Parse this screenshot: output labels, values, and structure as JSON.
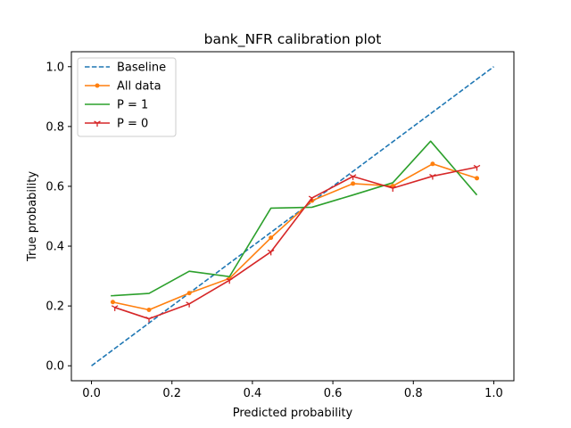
{
  "chart_data": {
    "type": "line",
    "title": "bank_NFR calibration plot",
    "xlabel": "Predicted probability",
    "ylabel": "True probability",
    "xlim": [
      -0.05,
      1.05
    ],
    "ylim": [
      -0.05,
      1.05
    ],
    "xticks": [
      0.0,
      0.2,
      0.4,
      0.6,
      0.8,
      1.0
    ],
    "yticks": [
      0.0,
      0.2,
      0.4,
      0.6,
      0.8,
      1.0
    ],
    "xtick_labels": [
      "0.0",
      "0.2",
      "0.4",
      "0.6",
      "0.8",
      "1.0"
    ],
    "ytick_labels": [
      "0.0",
      "0.2",
      "0.4",
      "0.6",
      "0.8",
      "1.0"
    ],
    "grid": false,
    "legend_position": "upper-left",
    "series": [
      {
        "name": "Baseline",
        "color": "#1f77b4",
        "style": "dashed",
        "marker": "none",
        "x": [
          0.0,
          1.0
        ],
        "y": [
          0.0,
          1.0
        ]
      },
      {
        "name": "All data",
        "color": "#ff7f0e",
        "style": "solid",
        "marker": "dot",
        "x": [
          0.053,
          0.143,
          0.243,
          0.343,
          0.446,
          0.548,
          0.65,
          0.749,
          0.848,
          0.958
        ],
        "y": [
          0.213,
          0.187,
          0.243,
          0.292,
          0.428,
          0.552,
          0.609,
          0.601,
          0.675,
          0.627
        ]
      },
      {
        "name": "P = 1",
        "color": "#2ca02c",
        "style": "solid",
        "marker": "none",
        "x": [
          0.048,
          0.143,
          0.243,
          0.343,
          0.446,
          0.548,
          0.65,
          0.749,
          0.843,
          0.958
        ],
        "y": [
          0.234,
          0.242,
          0.316,
          0.298,
          0.527,
          0.53,
          0.571,
          0.612,
          0.751,
          0.571
        ]
      },
      {
        "name": "P = 0",
        "color": "#d62728",
        "style": "solid",
        "marker": "tri",
        "x": [
          0.058,
          0.143,
          0.243,
          0.343,
          0.446,
          0.548,
          0.65,
          0.749,
          0.848,
          0.958
        ],
        "y": [
          0.195,
          0.157,
          0.207,
          0.286,
          0.381,
          0.561,
          0.633,
          0.594,
          0.634,
          0.664
        ]
      }
    ]
  }
}
